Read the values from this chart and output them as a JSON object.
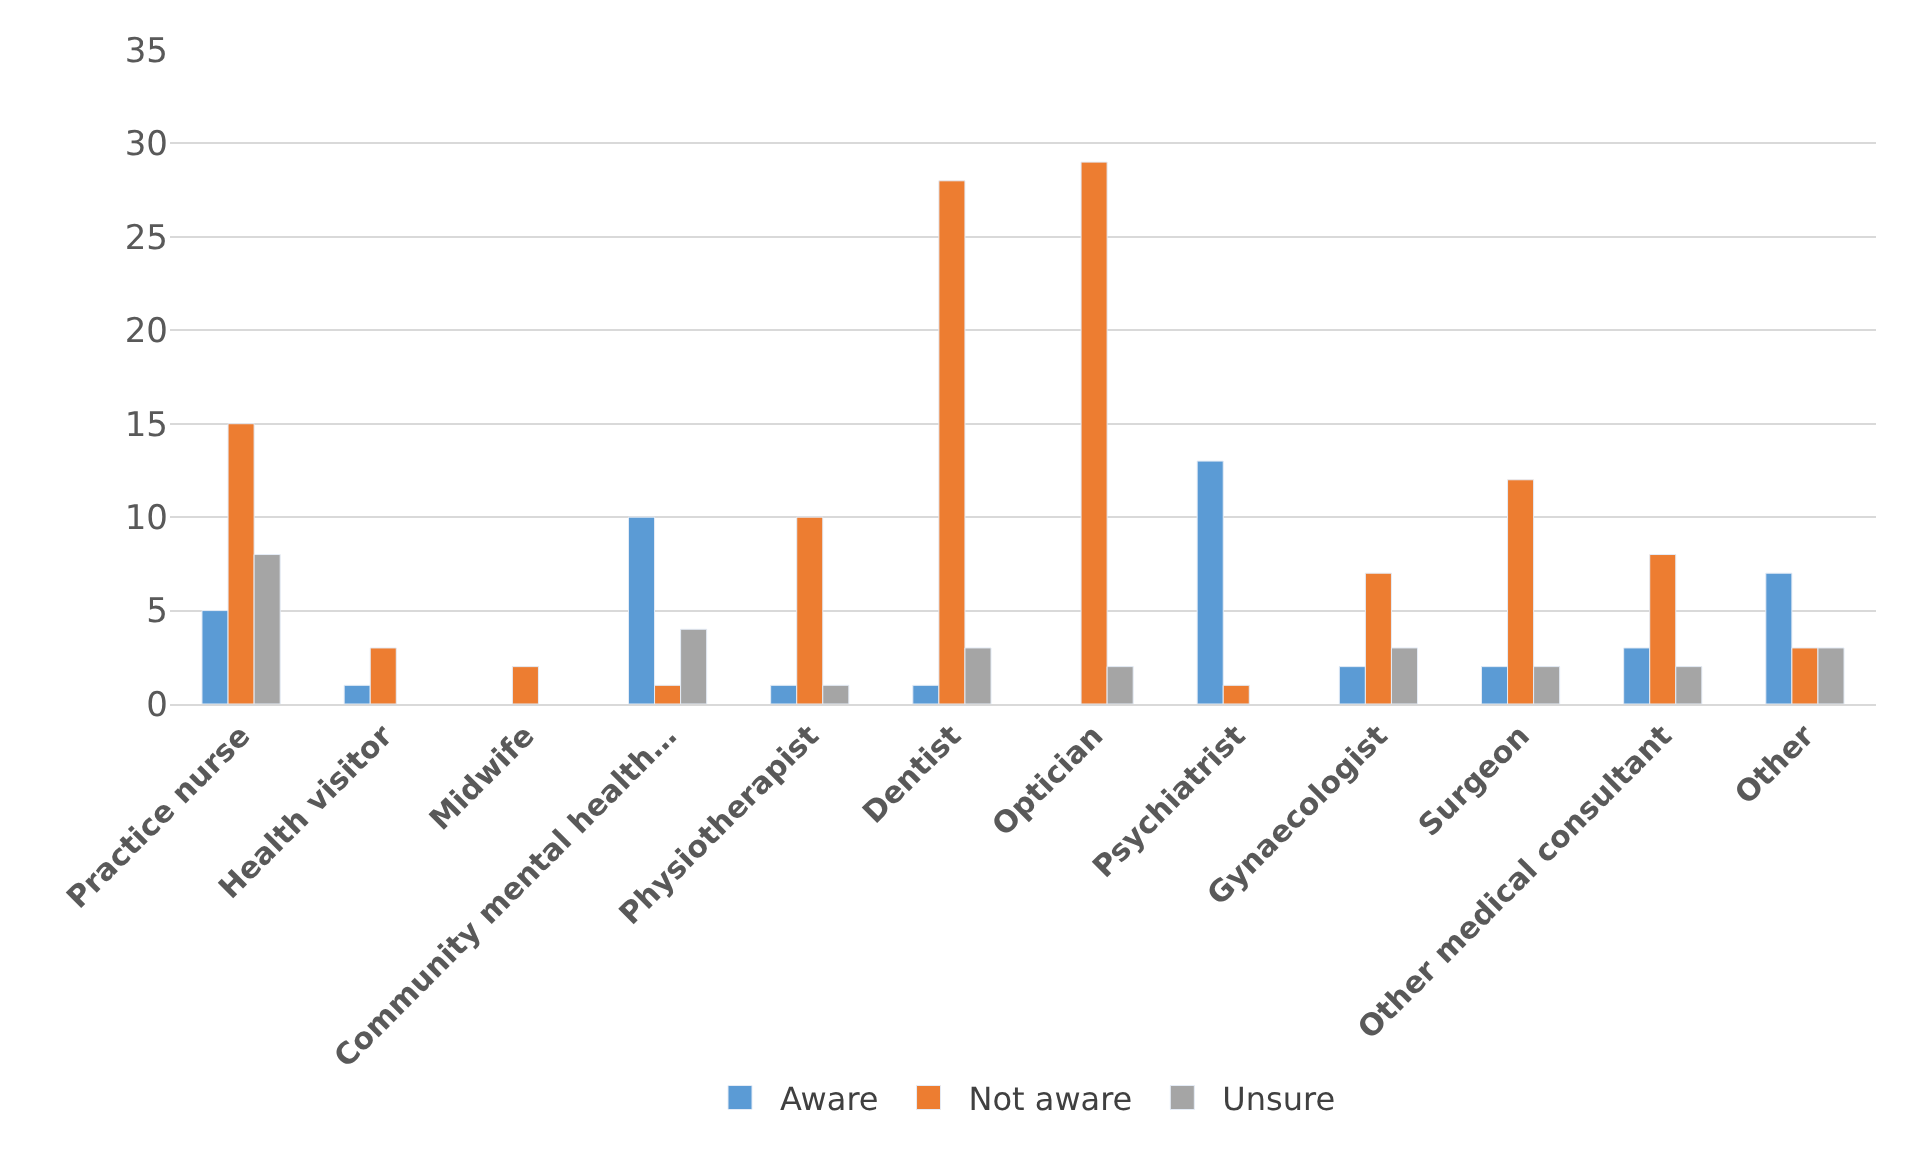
{
  "chart_data": {
    "type": "bar",
    "categories": [
      "Practice nurse",
      "Health visitor",
      "Midwife",
      "Community mental health…",
      "Physiotherapist",
      "Dentist",
      "Optician",
      "Psychiatrist",
      "Gynaecologist",
      "Surgeon",
      "Other medical consultant",
      "Other"
    ],
    "series": [
      {
        "name": "Aware",
        "color": "#5b9bd5",
        "values": [
          5,
          1,
          null,
          10,
          1,
          1,
          null,
          13,
          2,
          2,
          3,
          7
        ]
      },
      {
        "name": "Not aware",
        "color": "#ed7d31",
        "values": [
          15,
          3,
          2,
          1,
          10,
          28,
          29,
          1,
          7,
          12,
          8,
          3
        ]
      },
      {
        "name": "Unsure",
        "color": "#a5a5a5",
        "values": [
          8,
          null,
          null,
          4,
          1,
          3,
          2,
          null,
          3,
          2,
          2,
          3
        ]
      }
    ],
    "ylim": [
      0,
      35
    ],
    "yticks": [
      0,
      5,
      10,
      15,
      20,
      25,
      30,
      35
    ],
    "grid": "y",
    "legend": "bottom"
  }
}
